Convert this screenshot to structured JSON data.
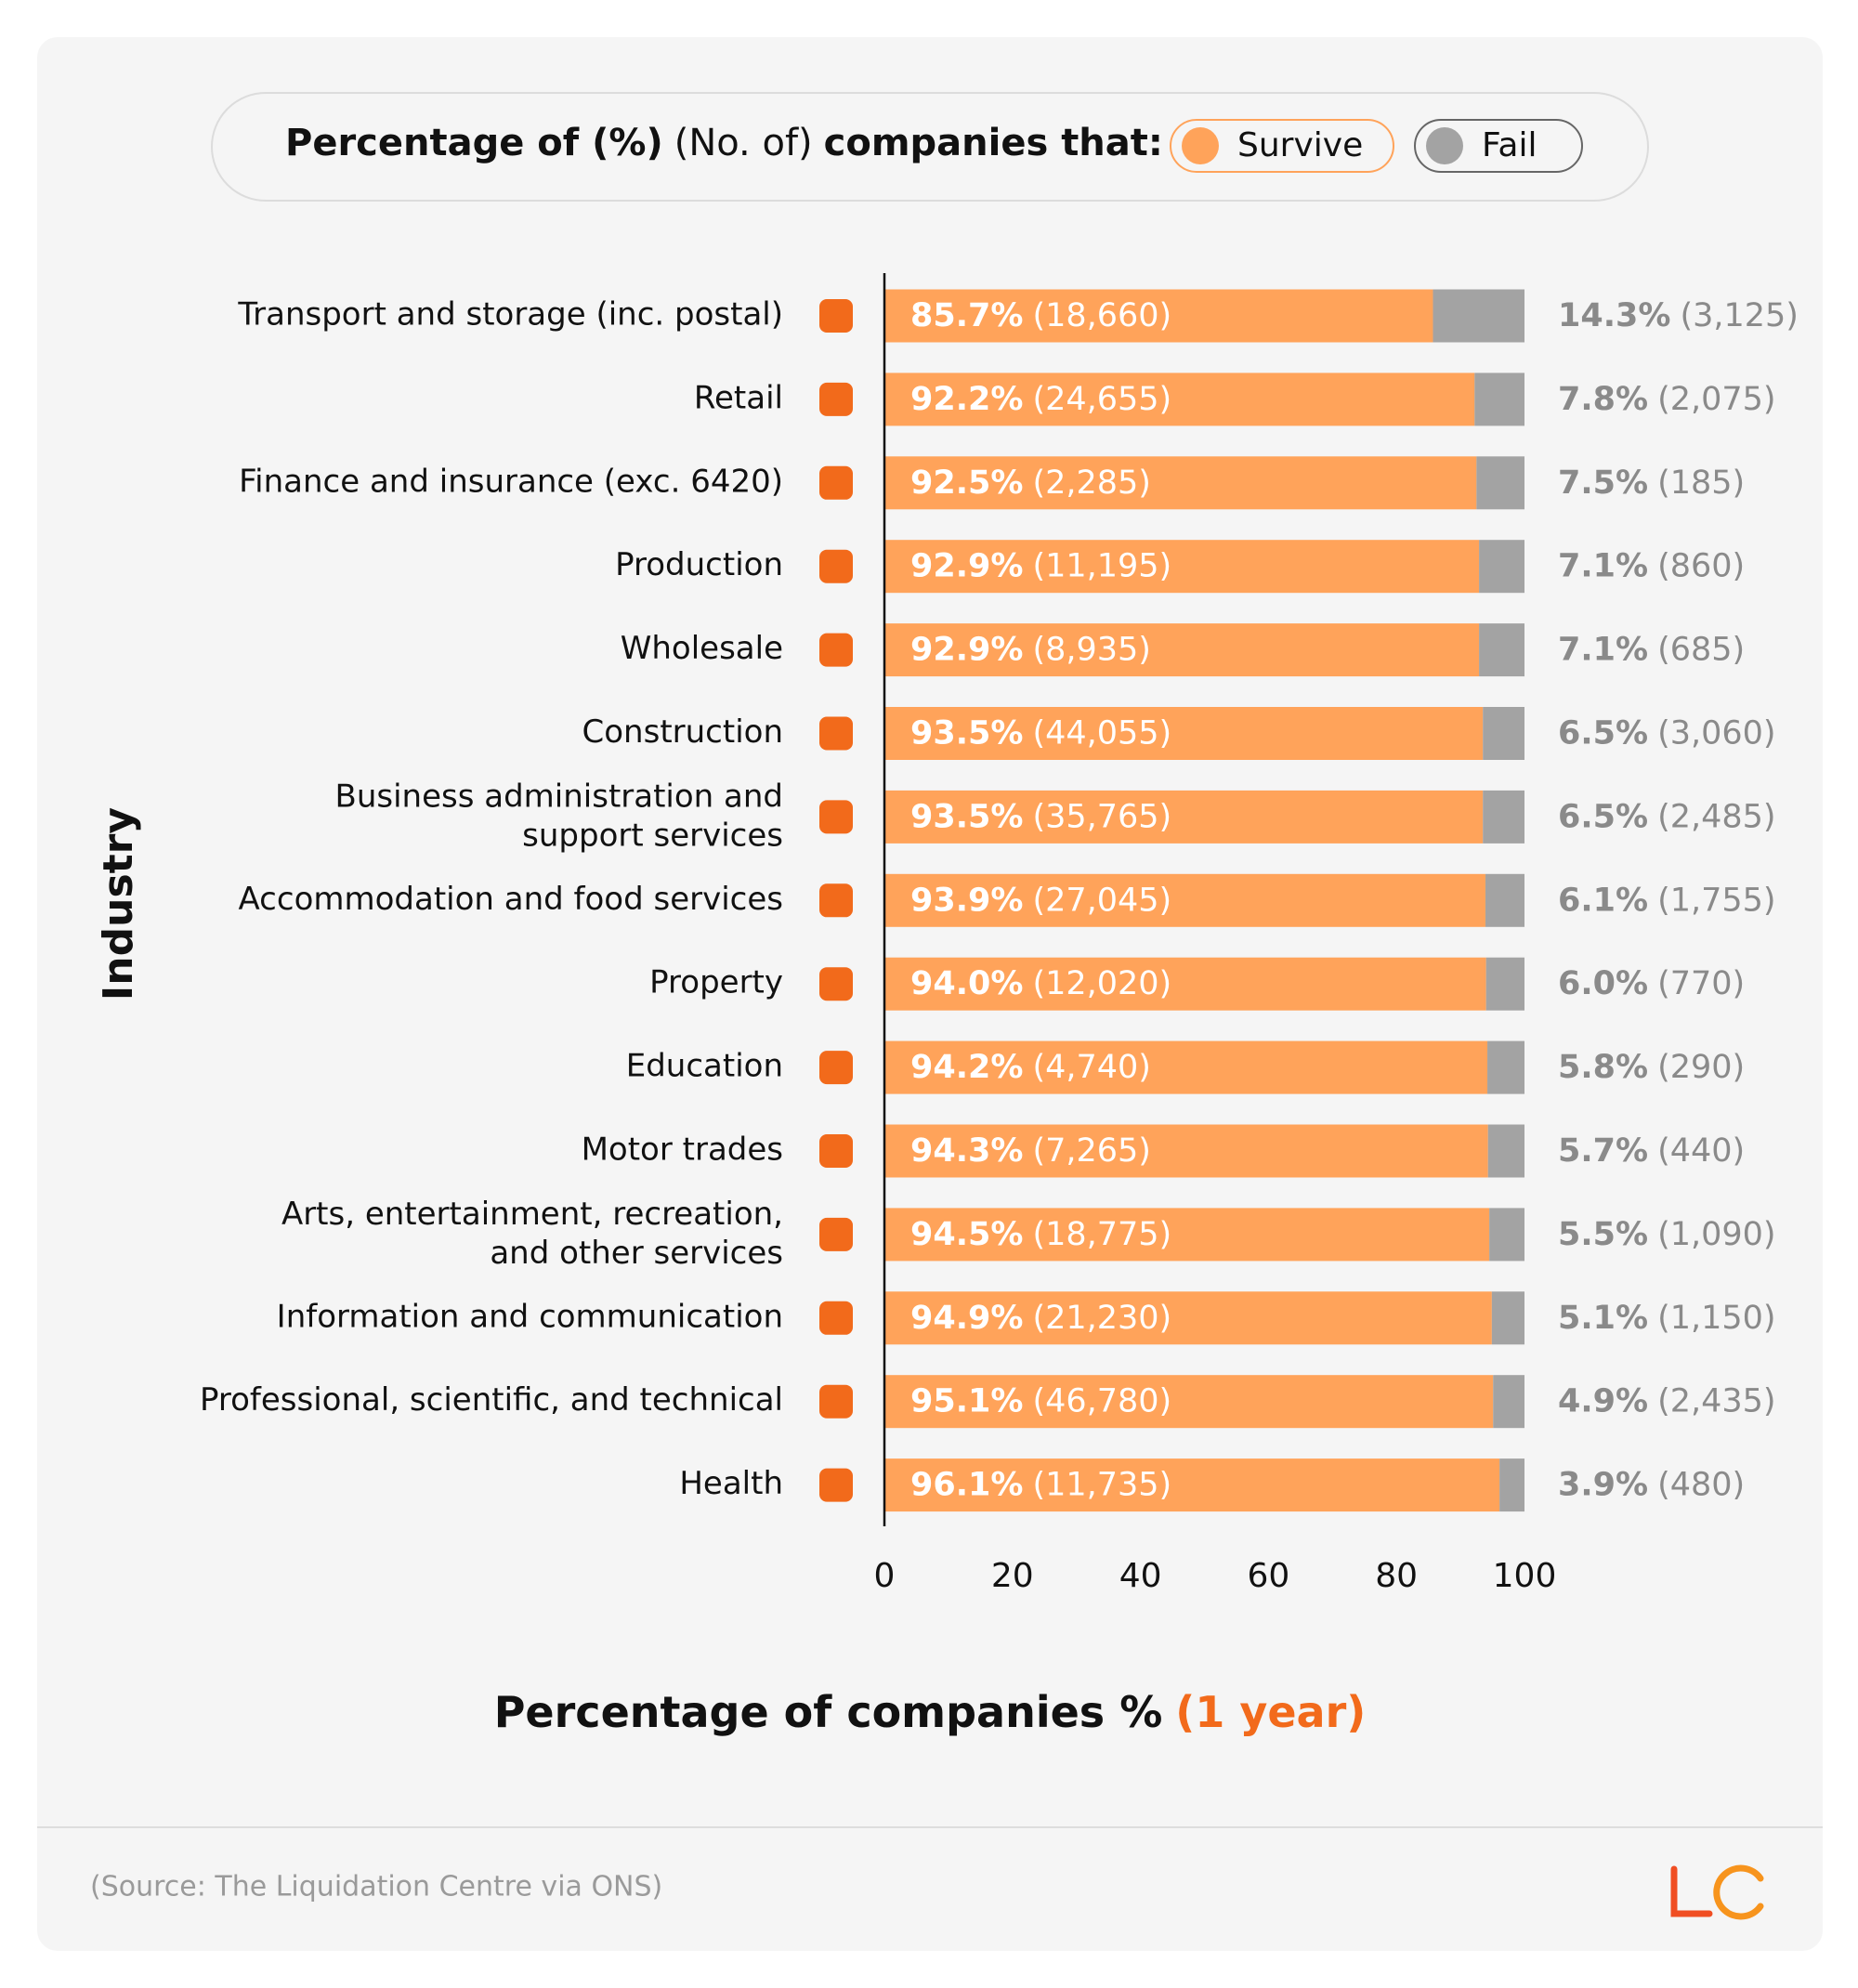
{
  "chart_data": {
    "type": "stacked-bar-horizontal",
    "title_parts": [
      "Percentage of (%)",
      "(No. of)",
      "companies that:"
    ],
    "y_label": "Industry",
    "x_label": "Percentage of companies %",
    "x_label_note": "(1 year)",
    "source": "(Source: The Liquidation Centre via ONS)",
    "categories": [
      "Transport and storage (inc. postal)",
      "Retail",
      "Finance and insurance (exc. 6420)",
      "Production",
      "Wholesale",
      "Construction",
      "Business administration and\nsupport services",
      "Accommodation and food services",
      "Property",
      "Education",
      "Motor trades",
      "Arts, entertainment, recreation,\nand other services",
      "Information and communication",
      "Professional, scientific, and technical",
      "Health"
    ],
    "series": [
      {
        "name": "Survive",
        "color": "#ffa35a",
        "values": [
          85.7,
          92.2,
          92.5,
          92.9,
          92.9,
          93.5,
          93.5,
          93.9,
          94.0,
          94.2,
          94.3,
          94.5,
          94.9,
          95.1,
          96.1
        ],
        "value_labels": [
          "85.7%",
          "92.2%",
          "92.5%",
          "92.9%",
          "92.9%",
          "93.5%",
          "93.5%",
          "93.9%",
          "94.0%",
          "94.2%",
          "94.3%",
          "94.5%",
          "94.9%",
          "95.1%",
          "96.1%"
        ],
        "count_labels": [
          "(18,660)",
          "(24,655)",
          "(2,285)",
          "(11,195)",
          "(8,935)",
          "(44,055)",
          "(35,765)",
          "(27,045)",
          "(12,020)",
          "(4,740)",
          "(7,265)",
          "(18,775)",
          "(21,230)",
          "(46,780)",
          "(11,735)"
        ]
      },
      {
        "name": "Fail",
        "color": "#a3a3a3",
        "values": [
          14.3,
          7.8,
          7.5,
          7.1,
          7.1,
          6.5,
          6.5,
          6.1,
          6.0,
          5.8,
          5.7,
          5.5,
          5.1,
          4.9,
          3.9
        ],
        "value_labels": [
          "14.3%",
          "7.8%",
          "7.5%",
          "7.1%",
          "7.1%",
          "6.5%",
          "6.5%",
          "6.1%",
          "6.0%",
          "5.8%",
          "5.7%",
          "5.5%",
          "5.1%",
          "4.9%",
          "3.9%"
        ],
        "count_labels": [
          "(3,125)",
          "(2,075)",
          "(185)",
          "(860)",
          "(685)",
          "(3,060)",
          "(2,485)",
          "(1,755)",
          "(770)",
          "(290)",
          "(440)",
          "(1,090)",
          "(1,150)",
          "(2,435)",
          "(480)"
        ]
      }
    ],
    "xlim": [
      0,
      100
    ],
    "xticks": [
      0,
      20,
      40,
      60,
      80,
      100
    ],
    "accent_color": "#f26a1b"
  }
}
